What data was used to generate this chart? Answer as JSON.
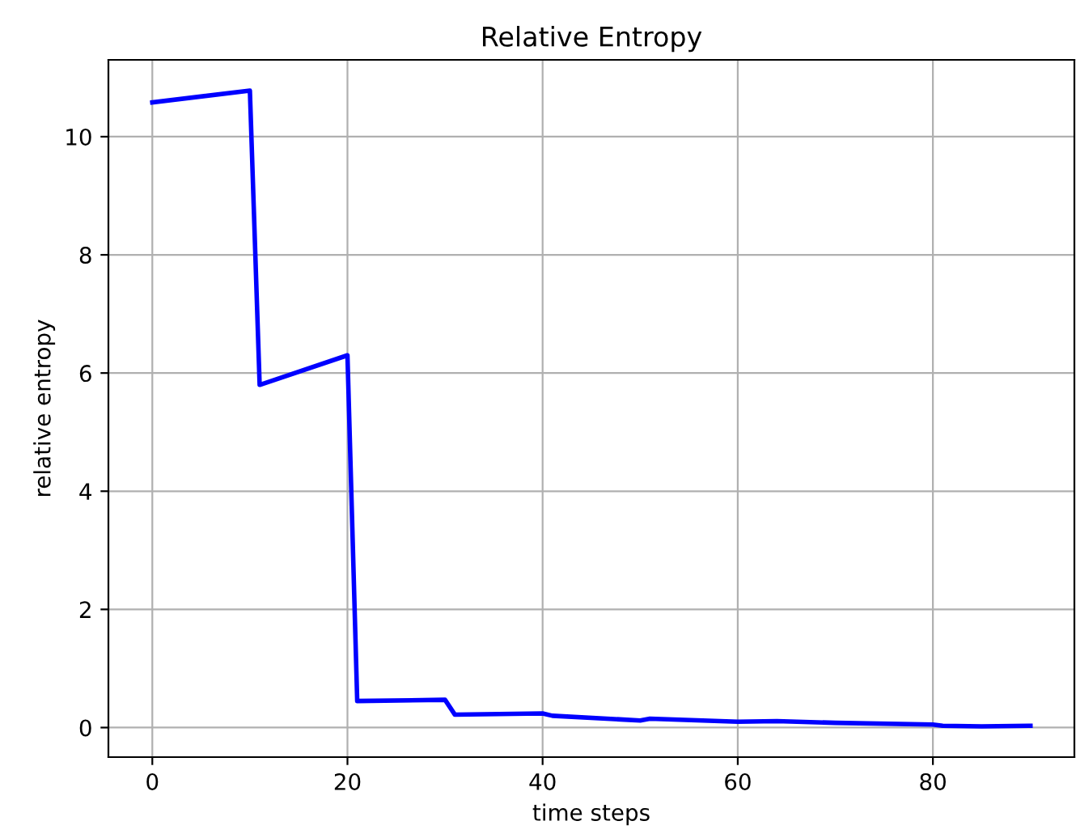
{
  "chart_data": {
    "type": "line",
    "title": "Relative Entropy",
    "xlabel": "time steps",
    "ylabel": "relative entropy",
    "series": [
      {
        "color": "#0000ff",
        "x": [
          0,
          10,
          11,
          20,
          21,
          30,
          31,
          40,
          41,
          50,
          51,
          60,
          64,
          70,
          80,
          81,
          85,
          90
        ],
        "values": [
          10.58,
          10.78,
          5.8,
          6.3,
          0.45,
          0.47,
          0.22,
          0.24,
          0.2,
          0.12,
          0.15,
          0.1,
          0.11,
          0.08,
          0.05,
          0.03,
          0.02,
          0.03
        ]
      }
    ],
    "xlim": [
      -4.5,
      94.5
    ],
    "ylim": [
      -0.5,
      11.3
    ],
    "xticks": [
      0,
      20,
      40,
      60,
      80
    ],
    "yticks": [
      0,
      2,
      4,
      6,
      8,
      10
    ],
    "grid": true,
    "line_style": "solid"
  }
}
